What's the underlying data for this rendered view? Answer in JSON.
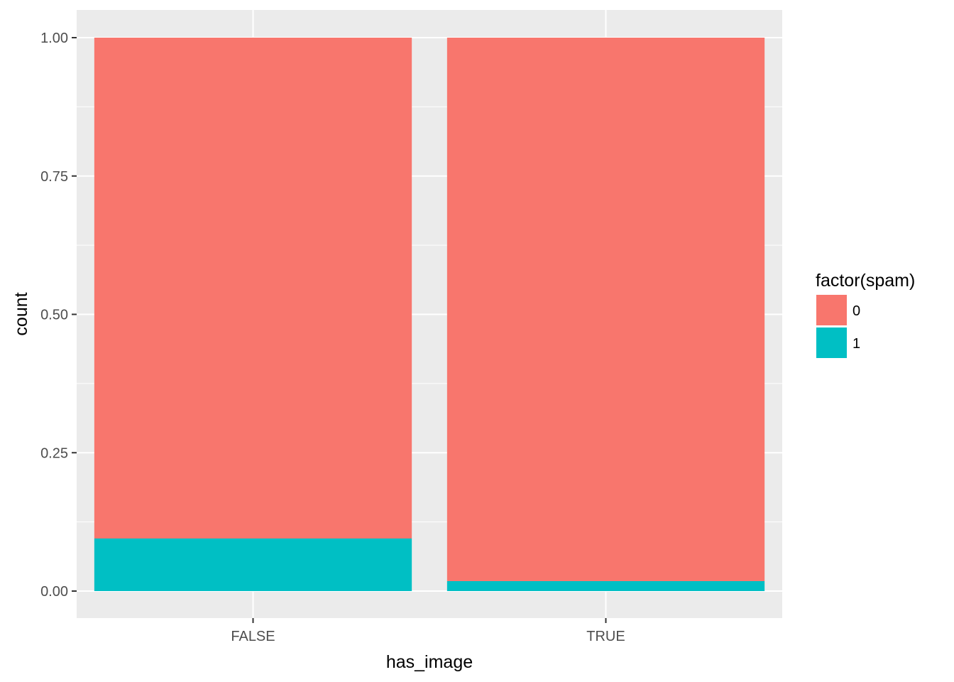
{
  "chart_data": {
    "type": "bar",
    "stacked": true,
    "title": "",
    "xlabel": "has_image",
    "ylabel": "count",
    "categories": [
      "FALSE",
      "TRUE"
    ],
    "series": [
      {
        "name": "0",
        "values": [
          0.905,
          0.982
        ],
        "color": "#F8766D"
      },
      {
        "name": "1",
        "values": [
          0.095,
          0.018
        ],
        "color": "#00BFC4"
      }
    ],
    "ylim": [
      -0.05,
      1.05
    ],
    "yticks": [
      0.0,
      0.25,
      0.5,
      0.75,
      1.0
    ],
    "ytick_labels": [
      "0.00",
      "0.25",
      "0.50",
      "0.75",
      "1.00"
    ],
    "grid": true,
    "panel_background": "#EBEBEB",
    "grid_color": "#FFFFFF",
    "legend": {
      "title": "factor(spam)",
      "position": "right",
      "entries": [
        {
          "label": "0",
          "color": "#F8766D"
        },
        {
          "label": "1",
          "color": "#00BFC4"
        }
      ]
    }
  }
}
